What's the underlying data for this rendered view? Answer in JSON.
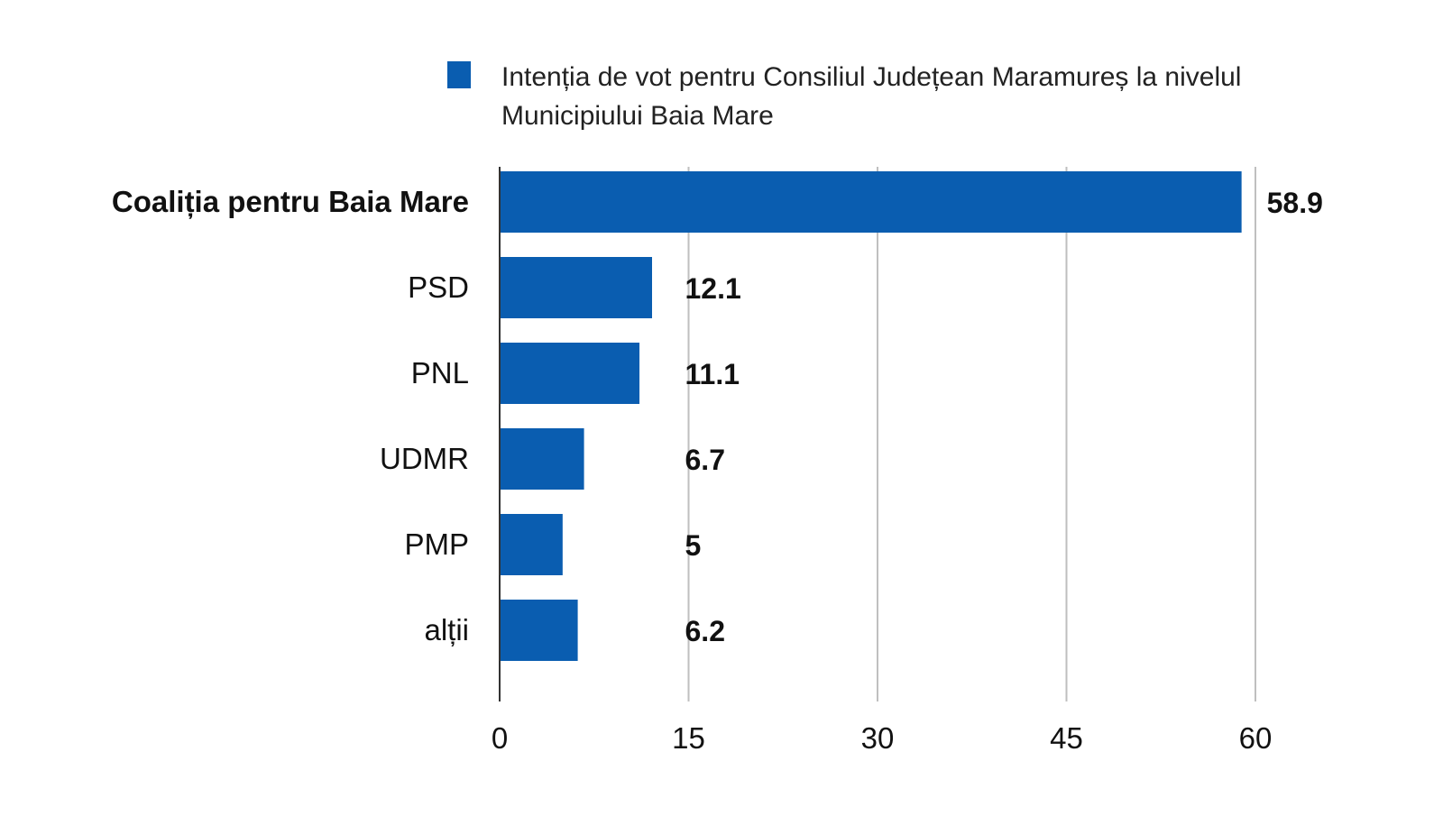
{
  "chart_data": {
    "type": "bar",
    "orientation": "horizontal",
    "legend": {
      "position": "top",
      "color": "#0a5db0",
      "lines": [
        "Intenția de vot pentru Consiliul Județean Maramureș la nivelul",
        "Municipiului Baia Mare"
      ]
    },
    "series": [
      {
        "name": "Intenția de vot pentru Consiliul Județean Maramureș la nivelul Municipiului Baia Mare",
        "color": "#0a5db0",
        "values": [
          58.9,
          12.1,
          11.1,
          6.7,
          5,
          6.2
        ]
      }
    ],
    "categories": [
      "Coaliția pentru Baia Mare",
      "PSD",
      "PNL",
      "UDMR",
      "PMP",
      "alții"
    ],
    "bold_categories": [
      "Coaliția pentru Baia Mare"
    ],
    "value_labels": [
      "58.9",
      "12.1",
      "11.1",
      "6.7",
      "5",
      "6.2"
    ],
    "xlim": [
      0,
      60
    ],
    "xticks": [
      0,
      15,
      30,
      45,
      60
    ],
    "tick_labels": [
      "0",
      "15",
      "30",
      "45",
      "60"
    ],
    "grid": true,
    "gridline_color": "#bfbfbf",
    "axis_color": "#333333"
  }
}
